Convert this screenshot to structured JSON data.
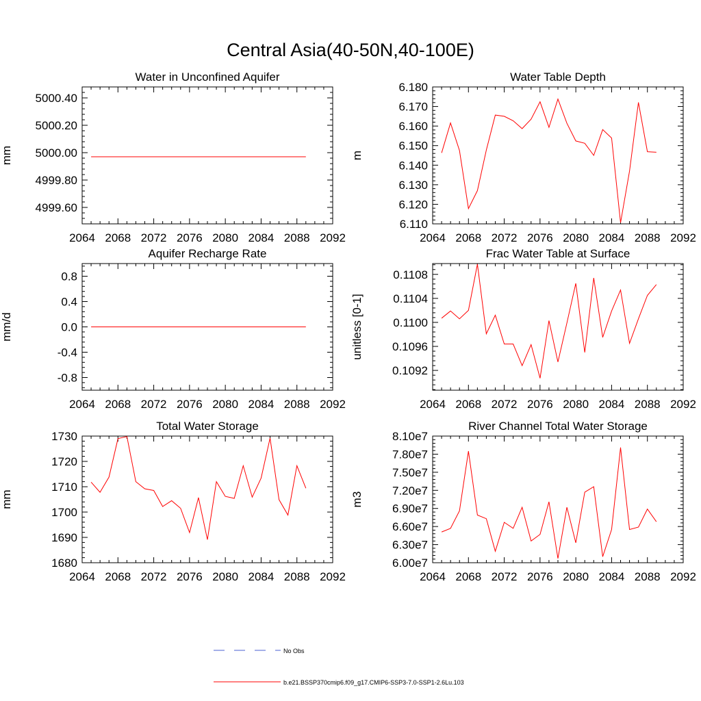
{
  "figure": {
    "title": "Central Asia(40-50N,40-100E)"
  },
  "legend": {
    "items": [
      {
        "label": "No Obs",
        "color": "#4a5fd0",
        "style": "dashed"
      },
      {
        "label": "b.e21.BSSP370cmip6.f09_g17.CMIP6-SSP3-7.0-SSP1-2.6Lu.103",
        "color": "#ff0000",
        "style": "solid"
      }
    ]
  },
  "chart_data": [
    {
      "type": "line",
      "title": "Water in Unconfined Aquifer",
      "ylabel": "mm",
      "xlim": [
        2064,
        2092
      ],
      "ylim": [
        4999.48,
        5000.48
      ],
      "xticks": [
        "2064",
        "2068",
        "2072",
        "2076",
        "2080",
        "2084",
        "2088",
        "2092"
      ],
      "yticks": [
        {
          "v": 4999.6,
          "label": "4999.60"
        },
        {
          "v": 4999.8,
          "label": "4999.80"
        },
        {
          "v": 5000.0,
          "label": "5000.00"
        },
        {
          "v": 5000.2,
          "label": "5000.20"
        },
        {
          "v": 5000.4,
          "label": "5000.40"
        }
      ],
      "series": [
        {
          "color": "#ff0000",
          "x": [
            2065,
            2066,
            2067,
            2068,
            2069,
            2070,
            2071,
            2072,
            2073,
            2074,
            2075,
            2076,
            2077,
            2078,
            2079,
            2080,
            2081,
            2082,
            2083,
            2084,
            2085,
            2086,
            2087,
            2088,
            2089
          ],
          "y": [
            4999.97,
            4999.97,
            4999.97,
            4999.97,
            4999.97,
            4999.97,
            4999.97,
            4999.97,
            4999.97,
            4999.97,
            4999.97,
            4999.97,
            4999.97,
            4999.97,
            4999.97,
            4999.97,
            4999.97,
            4999.97,
            4999.97,
            4999.97,
            4999.97,
            4999.97,
            4999.97,
            4999.97,
            4999.97
          ]
        }
      ]
    },
    {
      "type": "line",
      "title": "Water Table Depth",
      "ylabel": "m",
      "xlim": [
        2064,
        2092
      ],
      "ylim": [
        6.11,
        6.18
      ],
      "xticks": [
        "2064",
        "2068",
        "2072",
        "2076",
        "2080",
        "2084",
        "2088",
        "2092"
      ],
      "yticks": [
        {
          "v": 6.11,
          "label": "6.110"
        },
        {
          "v": 6.12,
          "label": "6.120"
        },
        {
          "v": 6.13,
          "label": "6.130"
        },
        {
          "v": 6.14,
          "label": "6.140"
        },
        {
          "v": 6.15,
          "label": "6.150"
        },
        {
          "v": 6.16,
          "label": "6.160"
        },
        {
          "v": 6.17,
          "label": "6.170"
        },
        {
          "v": 6.18,
          "label": "6.180"
        }
      ],
      "series": [
        {
          "color": "#ff0000",
          "x": [
            2065,
            2066,
            2067,
            2068,
            2069,
            2070,
            2071,
            2072,
            2073,
            2074,
            2075,
            2076,
            2077,
            2078,
            2079,
            2080,
            2081,
            2082,
            2083,
            2084,
            2085,
            2086,
            2087,
            2088,
            2089
          ],
          "y": [
            6.1463,
            6.1616,
            6.1475,
            6.1178,
            6.127,
            6.1477,
            6.1656,
            6.165,
            6.1627,
            6.1587,
            6.1635,
            6.1724,
            6.1593,
            6.1738,
            6.1614,
            6.1524,
            6.1512,
            6.145,
            6.1582,
            6.1539,
            6.1106,
            6.137,
            6.1721,
            6.1469,
            6.1466
          ]
        }
      ]
    },
    {
      "type": "line",
      "title": "Aquifer Recharge Rate",
      "ylabel": "mm/d",
      "xlim": [
        2064,
        2092
      ],
      "ylim": [
        -1.0,
        1.0
      ],
      "xticks": [
        "2064",
        "2068",
        "2072",
        "2076",
        "2080",
        "2084",
        "2088",
        "2092"
      ],
      "yticks": [
        {
          "v": -0.8,
          "label": "-0.8"
        },
        {
          "v": -0.4,
          "label": "-0.4"
        },
        {
          "v": 0.0,
          "label": "0.0"
        },
        {
          "v": 0.4,
          "label": "0.4"
        },
        {
          "v": 0.8,
          "label": "0.8"
        }
      ],
      "series": [
        {
          "color": "#ff0000",
          "x": [
            2065,
            2066,
            2067,
            2068,
            2069,
            2070,
            2071,
            2072,
            2073,
            2074,
            2075,
            2076,
            2077,
            2078,
            2079,
            2080,
            2081,
            2082,
            2083,
            2084,
            2085,
            2086,
            2087,
            2088,
            2089
          ],
          "y": [
            0,
            0,
            0,
            0,
            0,
            0,
            0,
            0,
            0,
            0,
            0,
            0,
            0,
            0,
            0,
            0,
            0,
            0,
            0,
            0,
            0,
            0,
            0,
            0,
            0
          ]
        }
      ]
    },
    {
      "type": "line",
      "title": "Frac Water Table at Surface",
      "ylabel": "unitless [0-1]",
      "xlim": [
        2064,
        2092
      ],
      "ylim": [
        0.10887,
        0.11098
      ],
      "xticks": [
        "2064",
        "2068",
        "2072",
        "2076",
        "2080",
        "2084",
        "2088",
        "2092"
      ],
      "yticks": [
        {
          "v": 0.1092,
          "label": "0.1092"
        },
        {
          "v": 0.1096,
          "label": "0.1096"
        },
        {
          "v": 0.11,
          "label": "0.1100"
        },
        {
          "v": 0.1104,
          "label": "0.1104"
        },
        {
          "v": 0.1108,
          "label": "0.1108"
        }
      ],
      "series": [
        {
          "color": "#ff0000",
          "x": [
            2065,
            2066,
            2067,
            2068,
            2069,
            2070,
            2071,
            2072,
            2073,
            2074,
            2075,
            2076,
            2077,
            2078,
            2079,
            2080,
            2081,
            2082,
            2083,
            2084,
            2085,
            2086,
            2087,
            2088,
            2089
          ],
          "y": [
            0.11007,
            0.11019,
            0.11006,
            0.1102,
            0.11097,
            0.10981,
            0.11012,
            0.10964,
            0.10964,
            0.10928,
            0.10963,
            0.10907,
            0.11003,
            0.10934,
            0.10999,
            0.11065,
            0.1095,
            0.11074,
            0.10975,
            0.11019,
            0.11054,
            0.10965,
            0.11006,
            0.11045,
            0.11063
          ]
        }
      ]
    },
    {
      "type": "line",
      "title": "Total Water Storage",
      "ylabel": "mm",
      "xlim": [
        2064,
        2092
      ],
      "ylim": [
        1680,
        1730
      ],
      "xticks": [
        "2064",
        "2068",
        "2072",
        "2076",
        "2080",
        "2084",
        "2088",
        "2092"
      ],
      "yticks": [
        {
          "v": 1680,
          "label": "1680"
        },
        {
          "v": 1690,
          "label": "1690"
        },
        {
          "v": 1700,
          "label": "1700"
        },
        {
          "v": 1710,
          "label": "1710"
        },
        {
          "v": 1720,
          "label": "1720"
        },
        {
          "v": 1730,
          "label": "1730"
        }
      ],
      "series": [
        {
          "color": "#ff0000",
          "x": [
            2065,
            2066,
            2067,
            2068,
            2069,
            2070,
            2071,
            2072,
            2073,
            2074,
            2075,
            2076,
            2077,
            2078,
            2079,
            2080,
            2081,
            2082,
            2083,
            2084,
            2085,
            2086,
            2087,
            2088,
            2089
          ],
          "y": [
            1711.8,
            1707.8,
            1713.8,
            1729.0,
            1729.8,
            1712.0,
            1709.2,
            1708.5,
            1702.2,
            1704.5,
            1701.5,
            1691.9,
            1705.7,
            1689.1,
            1712.0,
            1706.2,
            1705.4,
            1718.3,
            1705.9,
            1713.4,
            1729.2,
            1704.9,
            1698.8,
            1718.3,
            1709.4
          ]
        }
      ]
    },
    {
      "type": "line",
      "title": "River Channel Total Water Storage",
      "ylabel": "m3",
      "xlim": [
        2064,
        2092
      ],
      "ylim": [
        60000000,
        81000000
      ],
      "xticks": [
        "2064",
        "2068",
        "2072",
        "2076",
        "2080",
        "2084",
        "2088",
        "2092"
      ],
      "yticks": [
        {
          "v": 60000000,
          "label": "6.00e7"
        },
        {
          "v": 63000000,
          "label": "6.30e7"
        },
        {
          "v": 66000000,
          "label": "6.60e7"
        },
        {
          "v": 69000000,
          "label": "6.90e7"
        },
        {
          "v": 72000000,
          "label": "7.20e7"
        },
        {
          "v": 75000000,
          "label": "7.50e7"
        },
        {
          "v": 78000000,
          "label": "7.80e7"
        },
        {
          "v": 81000000,
          "label": "8.10e7"
        }
      ],
      "series": [
        {
          "color": "#ff0000",
          "x": [
            2065,
            2066,
            2067,
            2068,
            2069,
            2070,
            2071,
            2072,
            2073,
            2074,
            2075,
            2076,
            2077,
            2078,
            2079,
            2080,
            2081,
            2082,
            2083,
            2084,
            2085,
            2086,
            2087,
            2088,
            2089
          ],
          "y": [
            65100000,
            65700000,
            68600000,
            78500000,
            67900000,
            67300000,
            61900000,
            66700000,
            65700000,
            69200000,
            63600000,
            64700000,
            70100000,
            60700000,
            69200000,
            63300000,
            71700000,
            72600000,
            61000000,
            65500000,
            79100000,
            65500000,
            65900000,
            68900000,
            66800000
          ]
        }
      ]
    }
  ]
}
